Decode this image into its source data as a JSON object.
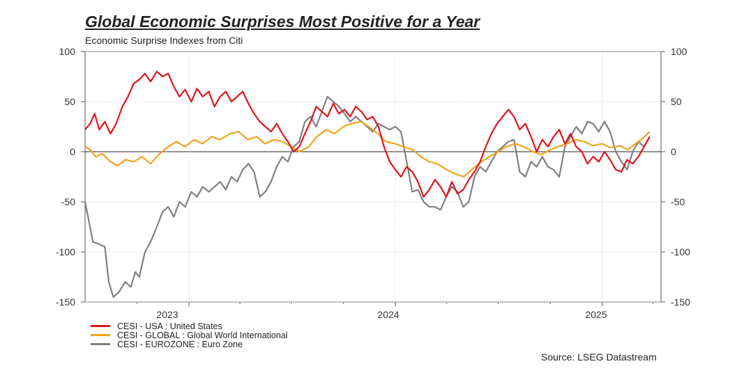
{
  "title": "Global Economic Surprises Most Positive for a Year",
  "subtitle": "Economic Surprise Indexes from Citi",
  "source": "Source: LSEG Datastream",
  "chart_data": {
    "type": "line",
    "x_tick_labels": [
      "2023",
      "2024",
      "2025"
    ],
    "y_ticks": [
      100,
      50,
      0,
      -50,
      -100,
      -150
    ],
    "ylim": [
      -150,
      100
    ],
    "xlim": [
      "2022-07-01",
      "2025-04-15"
    ],
    "grid": true,
    "legend_position": "bottom-left",
    "series": [
      {
        "name": "CESI - USA : United States",
        "color": "#e0141e",
        "points": [
          [
            "2022-07-01",
            22
          ],
          [
            "2022-07-10",
            28
          ],
          [
            "2022-07-18",
            38
          ],
          [
            "2022-07-26",
            22
          ],
          [
            "2022-08-05",
            30
          ],
          [
            "2022-08-15",
            18
          ],
          [
            "2022-08-25",
            28
          ],
          [
            "2022-09-05",
            45
          ],
          [
            "2022-09-15",
            55
          ],
          [
            "2022-09-25",
            68
          ],
          [
            "2022-10-05",
            72
          ],
          [
            "2022-10-15",
            78
          ],
          [
            "2022-10-25",
            70
          ],
          [
            "2022-11-05",
            80
          ],
          [
            "2022-11-15",
            75
          ],
          [
            "2022-11-25",
            78
          ],
          [
            "2022-12-05",
            65
          ],
          [
            "2022-12-15",
            55
          ],
          [
            "2022-12-25",
            62
          ],
          [
            "2023-01-05",
            50
          ],
          [
            "2023-01-15",
            63
          ],
          [
            "2023-01-25",
            55
          ],
          [
            "2023-02-05",
            60
          ],
          [
            "2023-02-15",
            45
          ],
          [
            "2023-02-25",
            55
          ],
          [
            "2023-03-07",
            60
          ],
          [
            "2023-03-17",
            50
          ],
          [
            "2023-03-27",
            55
          ],
          [
            "2023-04-06",
            60
          ],
          [
            "2023-04-16",
            48
          ],
          [
            "2023-04-26",
            38
          ],
          [
            "2023-05-06",
            30
          ],
          [
            "2023-05-16",
            25
          ],
          [
            "2023-05-26",
            20
          ],
          [
            "2023-06-05",
            28
          ],
          [
            "2023-06-15",
            18
          ],
          [
            "2023-06-25",
            10
          ],
          [
            "2023-07-05",
            0
          ],
          [
            "2023-07-15",
            5
          ],
          [
            "2023-07-25",
            18
          ],
          [
            "2023-08-04",
            30
          ],
          [
            "2023-08-14",
            45
          ],
          [
            "2023-08-24",
            40
          ],
          [
            "2023-09-03",
            35
          ],
          [
            "2023-09-13",
            48
          ],
          [
            "2023-09-23",
            38
          ],
          [
            "2023-10-03",
            42
          ],
          [
            "2023-10-13",
            35
          ],
          [
            "2023-10-23",
            45
          ],
          [
            "2023-11-02",
            40
          ],
          [
            "2023-11-12",
            32
          ],
          [
            "2023-11-22",
            35
          ],
          [
            "2023-12-02",
            25
          ],
          [
            "2023-12-12",
            5
          ],
          [
            "2023-12-22",
            -10
          ],
          [
            "2024-01-01",
            -18
          ],
          [
            "2024-01-11",
            -25
          ],
          [
            "2024-01-21",
            -15
          ],
          [
            "2024-01-31",
            -20
          ],
          [
            "2024-02-10",
            -30
          ],
          [
            "2024-02-20",
            -45
          ],
          [
            "2024-03-01",
            -38
          ],
          [
            "2024-03-11",
            -28
          ],
          [
            "2024-03-21",
            -35
          ],
          [
            "2024-03-31",
            -45
          ],
          [
            "2024-04-10",
            -30
          ],
          [
            "2024-04-20",
            -42
          ],
          [
            "2024-04-30",
            -38
          ],
          [
            "2024-05-10",
            -28
          ],
          [
            "2024-05-20",
            -20
          ],
          [
            "2024-05-30",
            -10
          ],
          [
            "2024-06-09",
            5
          ],
          [
            "2024-06-19",
            18
          ],
          [
            "2024-06-29",
            28
          ],
          [
            "2024-07-09",
            35
          ],
          [
            "2024-07-19",
            42
          ],
          [
            "2024-07-29",
            35
          ],
          [
            "2024-08-08",
            22
          ],
          [
            "2024-08-18",
            28
          ],
          [
            "2024-08-28",
            15
          ],
          [
            "2024-09-07",
            0
          ],
          [
            "2024-09-17",
            12
          ],
          [
            "2024-09-27",
            5
          ],
          [
            "2024-10-07",
            15
          ],
          [
            "2024-10-17",
            22
          ],
          [
            "2024-10-27",
            8
          ],
          [
            "2024-11-06",
            18
          ],
          [
            "2024-11-16",
            5
          ],
          [
            "2024-11-26",
            0
          ],
          [
            "2024-12-06",
            -12
          ],
          [
            "2024-12-16",
            -5
          ],
          [
            "2024-12-26",
            -10
          ],
          [
            "2025-01-05",
            0
          ],
          [
            "2025-01-15",
            -8
          ],
          [
            "2025-01-25",
            -18
          ],
          [
            "2025-02-04",
            -20
          ],
          [
            "2025-02-14",
            -8
          ],
          [
            "2025-02-24",
            -12
          ],
          [
            "2025-03-06",
            -5
          ],
          [
            "2025-03-16",
            5
          ],
          [
            "2025-03-26",
            15
          ]
        ]
      },
      {
        "name": "CESI - GLOBAL : Global World International",
        "color": "#f0a41e",
        "points": [
          [
            "2022-07-01",
            5
          ],
          [
            "2022-07-10",
            2
          ],
          [
            "2022-07-20",
            -5
          ],
          [
            "2022-08-01",
            -2
          ],
          [
            "2022-08-15",
            -10
          ],
          [
            "2022-08-28",
            -14
          ],
          [
            "2022-09-10",
            -8
          ],
          [
            "2022-09-25",
            -10
          ],
          [
            "2022-10-10",
            -5
          ],
          [
            "2022-10-25",
            -12
          ],
          [
            "2022-11-10",
            -2
          ],
          [
            "2022-11-25",
            5
          ],
          [
            "2022-12-10",
            10
          ],
          [
            "2022-12-25",
            5
          ],
          [
            "2023-01-10",
            12
          ],
          [
            "2023-01-25",
            8
          ],
          [
            "2023-02-10",
            15
          ],
          [
            "2023-02-25",
            12
          ],
          [
            "2023-03-15",
            18
          ],
          [
            "2023-03-30",
            20
          ],
          [
            "2023-04-15",
            12
          ],
          [
            "2023-05-01",
            15
          ],
          [
            "2023-05-15",
            8
          ],
          [
            "2023-06-01",
            12
          ],
          [
            "2023-06-15",
            10
          ],
          [
            "2023-07-01",
            5
          ],
          [
            "2023-07-15",
            0
          ],
          [
            "2023-08-01",
            5
          ],
          [
            "2023-08-15",
            15
          ],
          [
            "2023-09-01",
            22
          ],
          [
            "2023-09-15",
            18
          ],
          [
            "2023-10-01",
            25
          ],
          [
            "2023-10-15",
            28
          ],
          [
            "2023-11-01",
            30
          ],
          [
            "2023-11-15",
            25
          ],
          [
            "2023-12-01",
            18
          ],
          [
            "2023-12-15",
            10
          ],
          [
            "2024-01-01",
            8
          ],
          [
            "2024-01-15",
            5
          ],
          [
            "2024-02-01",
            2
          ],
          [
            "2024-02-15",
            -5
          ],
          [
            "2024-03-01",
            -10
          ],
          [
            "2024-03-15",
            -12
          ],
          [
            "2024-04-01",
            -18
          ],
          [
            "2024-04-15",
            -22
          ],
          [
            "2024-05-01",
            -25
          ],
          [
            "2024-05-15",
            -18
          ],
          [
            "2024-06-01",
            -10
          ],
          [
            "2024-06-15",
            -5
          ],
          [
            "2024-07-01",
            0
          ],
          [
            "2024-07-15",
            5
          ],
          [
            "2024-08-01",
            8
          ],
          [
            "2024-08-15",
            5
          ],
          [
            "2024-09-01",
            0
          ],
          [
            "2024-09-15",
            -3
          ],
          [
            "2024-10-01",
            2
          ],
          [
            "2024-10-15",
            5
          ],
          [
            "2024-11-01",
            8
          ],
          [
            "2024-11-15",
            12
          ],
          [
            "2024-12-01",
            10
          ],
          [
            "2024-12-15",
            6
          ],
          [
            "2025-01-01",
            8
          ],
          [
            "2025-01-15",
            4
          ],
          [
            "2025-02-01",
            6
          ],
          [
            "2025-02-15",
            2
          ],
          [
            "2025-03-01",
            8
          ],
          [
            "2025-03-15",
            14
          ],
          [
            "2025-03-26",
            20
          ]
        ]
      },
      {
        "name": "CESI - EUROZONE : Euro Zone",
        "color": "#808080",
        "points": [
          [
            "2022-07-01",
            -50
          ],
          [
            "2022-07-08",
            -70
          ],
          [
            "2022-07-15",
            -90
          ],
          [
            "2022-07-25",
            -92
          ],
          [
            "2022-08-05",
            -95
          ],
          [
            "2022-08-12",
            -130
          ],
          [
            "2022-08-20",
            -145
          ],
          [
            "2022-08-30",
            -140
          ],
          [
            "2022-09-10",
            -130
          ],
          [
            "2022-09-20",
            -135
          ],
          [
            "2022-09-28",
            -120
          ],
          [
            "2022-10-05",
            -125
          ],
          [
            "2022-10-15",
            -100
          ],
          [
            "2022-10-25",
            -90
          ],
          [
            "2022-11-05",
            -75
          ],
          [
            "2022-11-15",
            -60
          ],
          [
            "2022-11-25",
            -55
          ],
          [
            "2022-12-05",
            -65
          ],
          [
            "2022-12-15",
            -50
          ],
          [
            "2022-12-25",
            -55
          ],
          [
            "2023-01-05",
            -40
          ],
          [
            "2023-01-15",
            -45
          ],
          [
            "2023-01-25",
            -35
          ],
          [
            "2023-02-05",
            -40
          ],
          [
            "2023-02-15",
            -35
          ],
          [
            "2023-02-25",
            -30
          ],
          [
            "2023-03-07",
            -38
          ],
          [
            "2023-03-17",
            -25
          ],
          [
            "2023-03-27",
            -30
          ],
          [
            "2023-04-06",
            -18
          ],
          [
            "2023-04-16",
            -12
          ],
          [
            "2023-04-26",
            -20
          ],
          [
            "2023-05-06",
            -45
          ],
          [
            "2023-05-16",
            -40
          ],
          [
            "2023-05-26",
            -30
          ],
          [
            "2023-06-05",
            -15
          ],
          [
            "2023-06-15",
            -5
          ],
          [
            "2023-06-25",
            -10
          ],
          [
            "2023-07-05",
            5
          ],
          [
            "2023-07-15",
            10
          ],
          [
            "2023-07-25",
            30
          ],
          [
            "2023-08-04",
            35
          ],
          [
            "2023-08-14",
            25
          ],
          [
            "2023-08-24",
            40
          ],
          [
            "2023-09-03",
            55
          ],
          [
            "2023-09-13",
            50
          ],
          [
            "2023-09-23",
            45
          ],
          [
            "2023-10-03",
            38
          ],
          [
            "2023-10-13",
            30
          ],
          [
            "2023-10-23",
            35
          ],
          [
            "2023-11-02",
            30
          ],
          [
            "2023-11-12",
            25
          ],
          [
            "2023-11-22",
            20
          ],
          [
            "2023-12-02",
            28
          ],
          [
            "2023-12-12",
            25
          ],
          [
            "2023-12-22",
            22
          ],
          [
            "2024-01-01",
            25
          ],
          [
            "2024-01-11",
            20
          ],
          [
            "2024-01-21",
            -10
          ],
          [
            "2024-01-31",
            -40
          ],
          [
            "2024-02-10",
            -38
          ],
          [
            "2024-02-20",
            -50
          ],
          [
            "2024-03-01",
            -55
          ],
          [
            "2024-03-11",
            -55
          ],
          [
            "2024-03-21",
            -58
          ],
          [
            "2024-03-31",
            -45
          ],
          [
            "2024-04-10",
            -35
          ],
          [
            "2024-04-20",
            -40
          ],
          [
            "2024-04-30",
            -55
          ],
          [
            "2024-05-10",
            -50
          ],
          [
            "2024-05-20",
            -25
          ],
          [
            "2024-05-30",
            -15
          ],
          [
            "2024-06-09",
            -20
          ],
          [
            "2024-06-19",
            -10
          ],
          [
            "2024-06-29",
            0
          ],
          [
            "2024-07-09",
            5
          ],
          [
            "2024-07-19",
            10
          ],
          [
            "2024-07-29",
            12
          ],
          [
            "2024-08-08",
            -20
          ],
          [
            "2024-08-18",
            -25
          ],
          [
            "2024-08-28",
            -10
          ],
          [
            "2024-09-07",
            -15
          ],
          [
            "2024-09-17",
            -5
          ],
          [
            "2024-09-27",
            -15
          ],
          [
            "2024-10-07",
            -18
          ],
          [
            "2024-10-17",
            -25
          ],
          [
            "2024-10-27",
            5
          ],
          [
            "2024-11-06",
            15
          ],
          [
            "2024-11-16",
            25
          ],
          [
            "2024-11-26",
            18
          ],
          [
            "2024-12-06",
            30
          ],
          [
            "2024-12-16",
            28
          ],
          [
            "2024-12-26",
            20
          ],
          [
            "2025-01-05",
            30
          ],
          [
            "2025-01-15",
            20
          ],
          [
            "2025-01-25",
            0
          ],
          [
            "2025-02-04",
            -10
          ],
          [
            "2025-02-14",
            -18
          ],
          [
            "2025-02-24",
            0
          ],
          [
            "2025-03-06",
            10
          ],
          [
            "2025-03-16",
            5
          ],
          [
            "2025-03-26",
            15
          ]
        ]
      }
    ]
  }
}
